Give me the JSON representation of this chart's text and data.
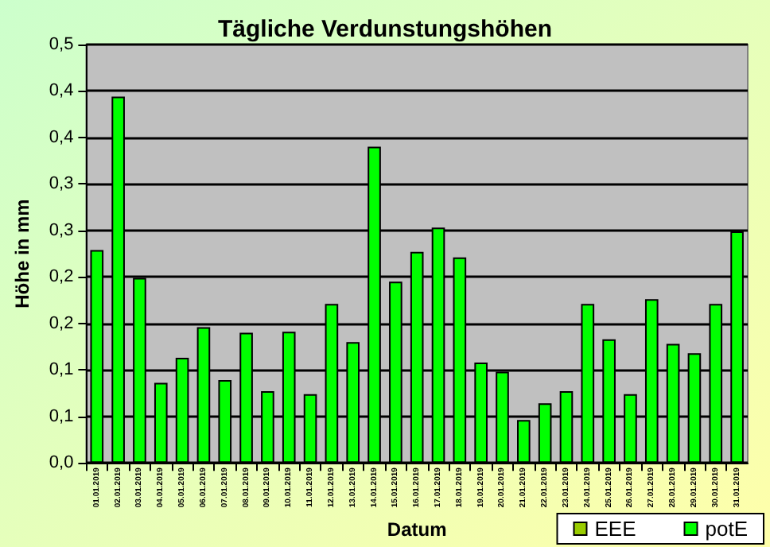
{
  "chart_data": {
    "type": "bar",
    "title": "Tägliche Verdunstungshöhen",
    "xlabel": "Datum",
    "ylabel": "Höhe in mm",
    "categories": [
      "01.01.2019",
      "02.01.2019",
      "03.01.2019",
      "04.01.2019",
      "05.01.2019",
      "06.01.2019",
      "07.01.2019",
      "08.01.2019",
      "09.01.2019",
      "10.01.2019",
      "11.01.2019",
      "12.01.2019",
      "13.01.2019",
      "14.01.2019",
      "15.01.2019",
      "16.01.2019",
      "17.01.2019",
      "18.01.2019",
      "19.01.2019",
      "20.01.2019",
      "21.01.2019",
      "22.01.2019",
      "23.01.2019",
      "24.01.2019",
      "25.01.2019",
      "26.01.2019",
      "27.01.2019",
      "28.01.2019",
      "29.01.2019",
      "30.01.2019",
      "31.01.2019"
    ],
    "series": [
      {
        "name": "EEE",
        "color": "#99cc00",
        "values": [
          null,
          null,
          null,
          null,
          null,
          null,
          null,
          null,
          null,
          null,
          null,
          null,
          null,
          null,
          null,
          null,
          null,
          null,
          null,
          null,
          null,
          null,
          null,
          null,
          null,
          null,
          null,
          null,
          null,
          null,
          null
        ]
      },
      {
        "name": "potE",
        "color": "#00ff00",
        "values": [
          0.229,
          0.394,
          0.199,
          0.086,
          0.113,
          0.146,
          0.089,
          0.14,
          0.077,
          0.141,
          0.074,
          0.171,
          0.13,
          0.34,
          0.195,
          0.227,
          0.253,
          0.221,
          0.108,
          0.098,
          0.046,
          0.064,
          0.077,
          0.171,
          0.133,
          0.074,
          0.176,
          0.128,
          0.118,
          0.171,
          0.249
        ]
      }
    ],
    "ylim": [
      0,
      0.45
    ],
    "yticks": [
      {
        "value": 0,
        "label": "0,0"
      },
      {
        "value": 0.05,
        "label": "0,1"
      },
      {
        "value": 0.1,
        "label": "0,1"
      },
      {
        "value": 0.15,
        "label": "0,2"
      },
      {
        "value": 0.2,
        "label": "0,2"
      },
      {
        "value": 0.25,
        "label": "0,3"
      },
      {
        "value": 0.3,
        "label": "0,3"
      },
      {
        "value": 0.35,
        "label": "0,4"
      },
      {
        "value": 0.4,
        "label": "0,4"
      },
      {
        "value": 0.45,
        "label": "0,5"
      }
    ],
    "grid": "y",
    "legend": "bottom right"
  }
}
